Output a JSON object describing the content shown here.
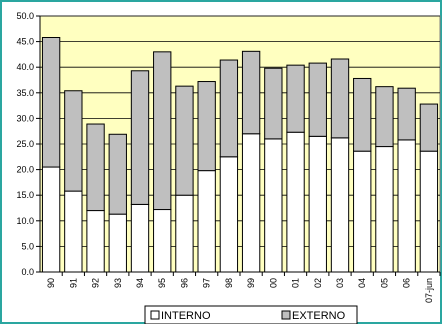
{
  "chart_data": {
    "type": "bar",
    "stacked": true,
    "categories": [
      "90",
      "91",
      "92",
      "93",
      "94",
      "95",
      "96",
      "97",
      "98",
      "99",
      "00",
      "01",
      "02",
      "03",
      "04",
      "05",
      "06",
      "07-jun"
    ],
    "series": [
      {
        "name": "INTERNO",
        "values": [
          20.5,
          15.8,
          12.0,
          11.3,
          13.2,
          12.2,
          15.0,
          19.8,
          22.5,
          27.0,
          26.0,
          27.3,
          26.5,
          26.2,
          23.6,
          24.5,
          25.8,
          23.6
        ]
      },
      {
        "name": "EXTERNO",
        "values": [
          25.3,
          19.6,
          16.9,
          15.6,
          26.1,
          30.8,
          21.3,
          17.4,
          18.9,
          16.1,
          13.8,
          13.1,
          14.3,
          15.4,
          14.2,
          11.7,
          10.1,
          9.2
        ]
      }
    ],
    "yticks": [
      "0.0",
      "5.0",
      "10.0",
      "15.0",
      "20.0",
      "25.0",
      "30.0",
      "35.0",
      "40.0",
      "45.0",
      "50.0"
    ],
    "ylim": [
      0,
      50
    ],
    "grid": true,
    "legend_position": "bottom",
    "colors": {
      "plot_background": "#ffffc0",
      "interno_fill": "#ffffff",
      "externo_fill": "#bfbfbf",
      "bar_stroke": "#000000",
      "frame_border": "#2aa6a0"
    }
  }
}
